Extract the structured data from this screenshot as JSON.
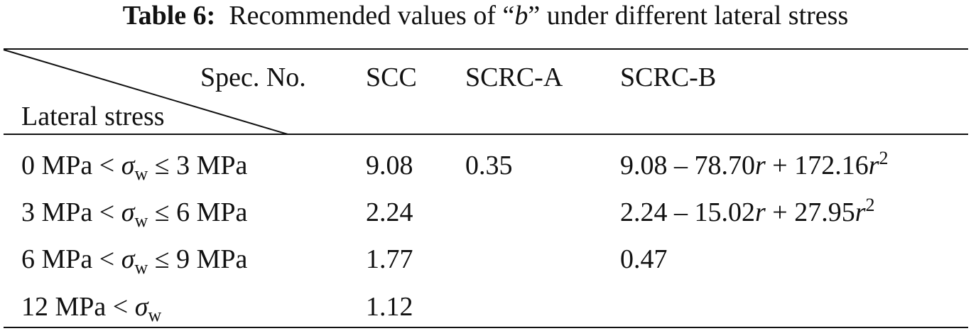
{
  "title": {
    "label": "Table 6:",
    "text": [
      "Recommended values of “",
      "b",
      "” under different lateral stress"
    ]
  },
  "table": {
    "header": {
      "spec": "Spec. No.",
      "lateral": "Lateral stress",
      "columns": [
        "SCC",
        "SCRC-A",
        "SCRC-B"
      ]
    },
    "rows": [
      {
        "lateral": [
          "0 MPa < ",
          "σ",
          "w",
          " ≤ 3 MPa"
        ],
        "SCC": "9.08",
        "SCRC-A": "0.35",
        "SCRC-B": [
          "9.08 – 78.70",
          "r",
          " + 172.16",
          "r",
          "2"
        ]
      },
      {
        "lateral": [
          "3 MPa < ",
          "σ",
          "w",
          " ≤ 6 MPa"
        ],
        "SCC": "2.24",
        "SCRC-B": [
          "2.24 – 15.02",
          "r",
          " + 27.95",
          "r",
          "2"
        ]
      },
      {
        "lateral": [
          "6 MPa < ",
          "σ",
          "w",
          " ≤ 9 MPa"
        ],
        "SCC": "1.77",
        "SCRC-B": "0.47"
      },
      {
        "lateral": [
          "12 MPa < ",
          "σ",
          "w"
        ],
        "SCC": "1.12"
      }
    ]
  }
}
